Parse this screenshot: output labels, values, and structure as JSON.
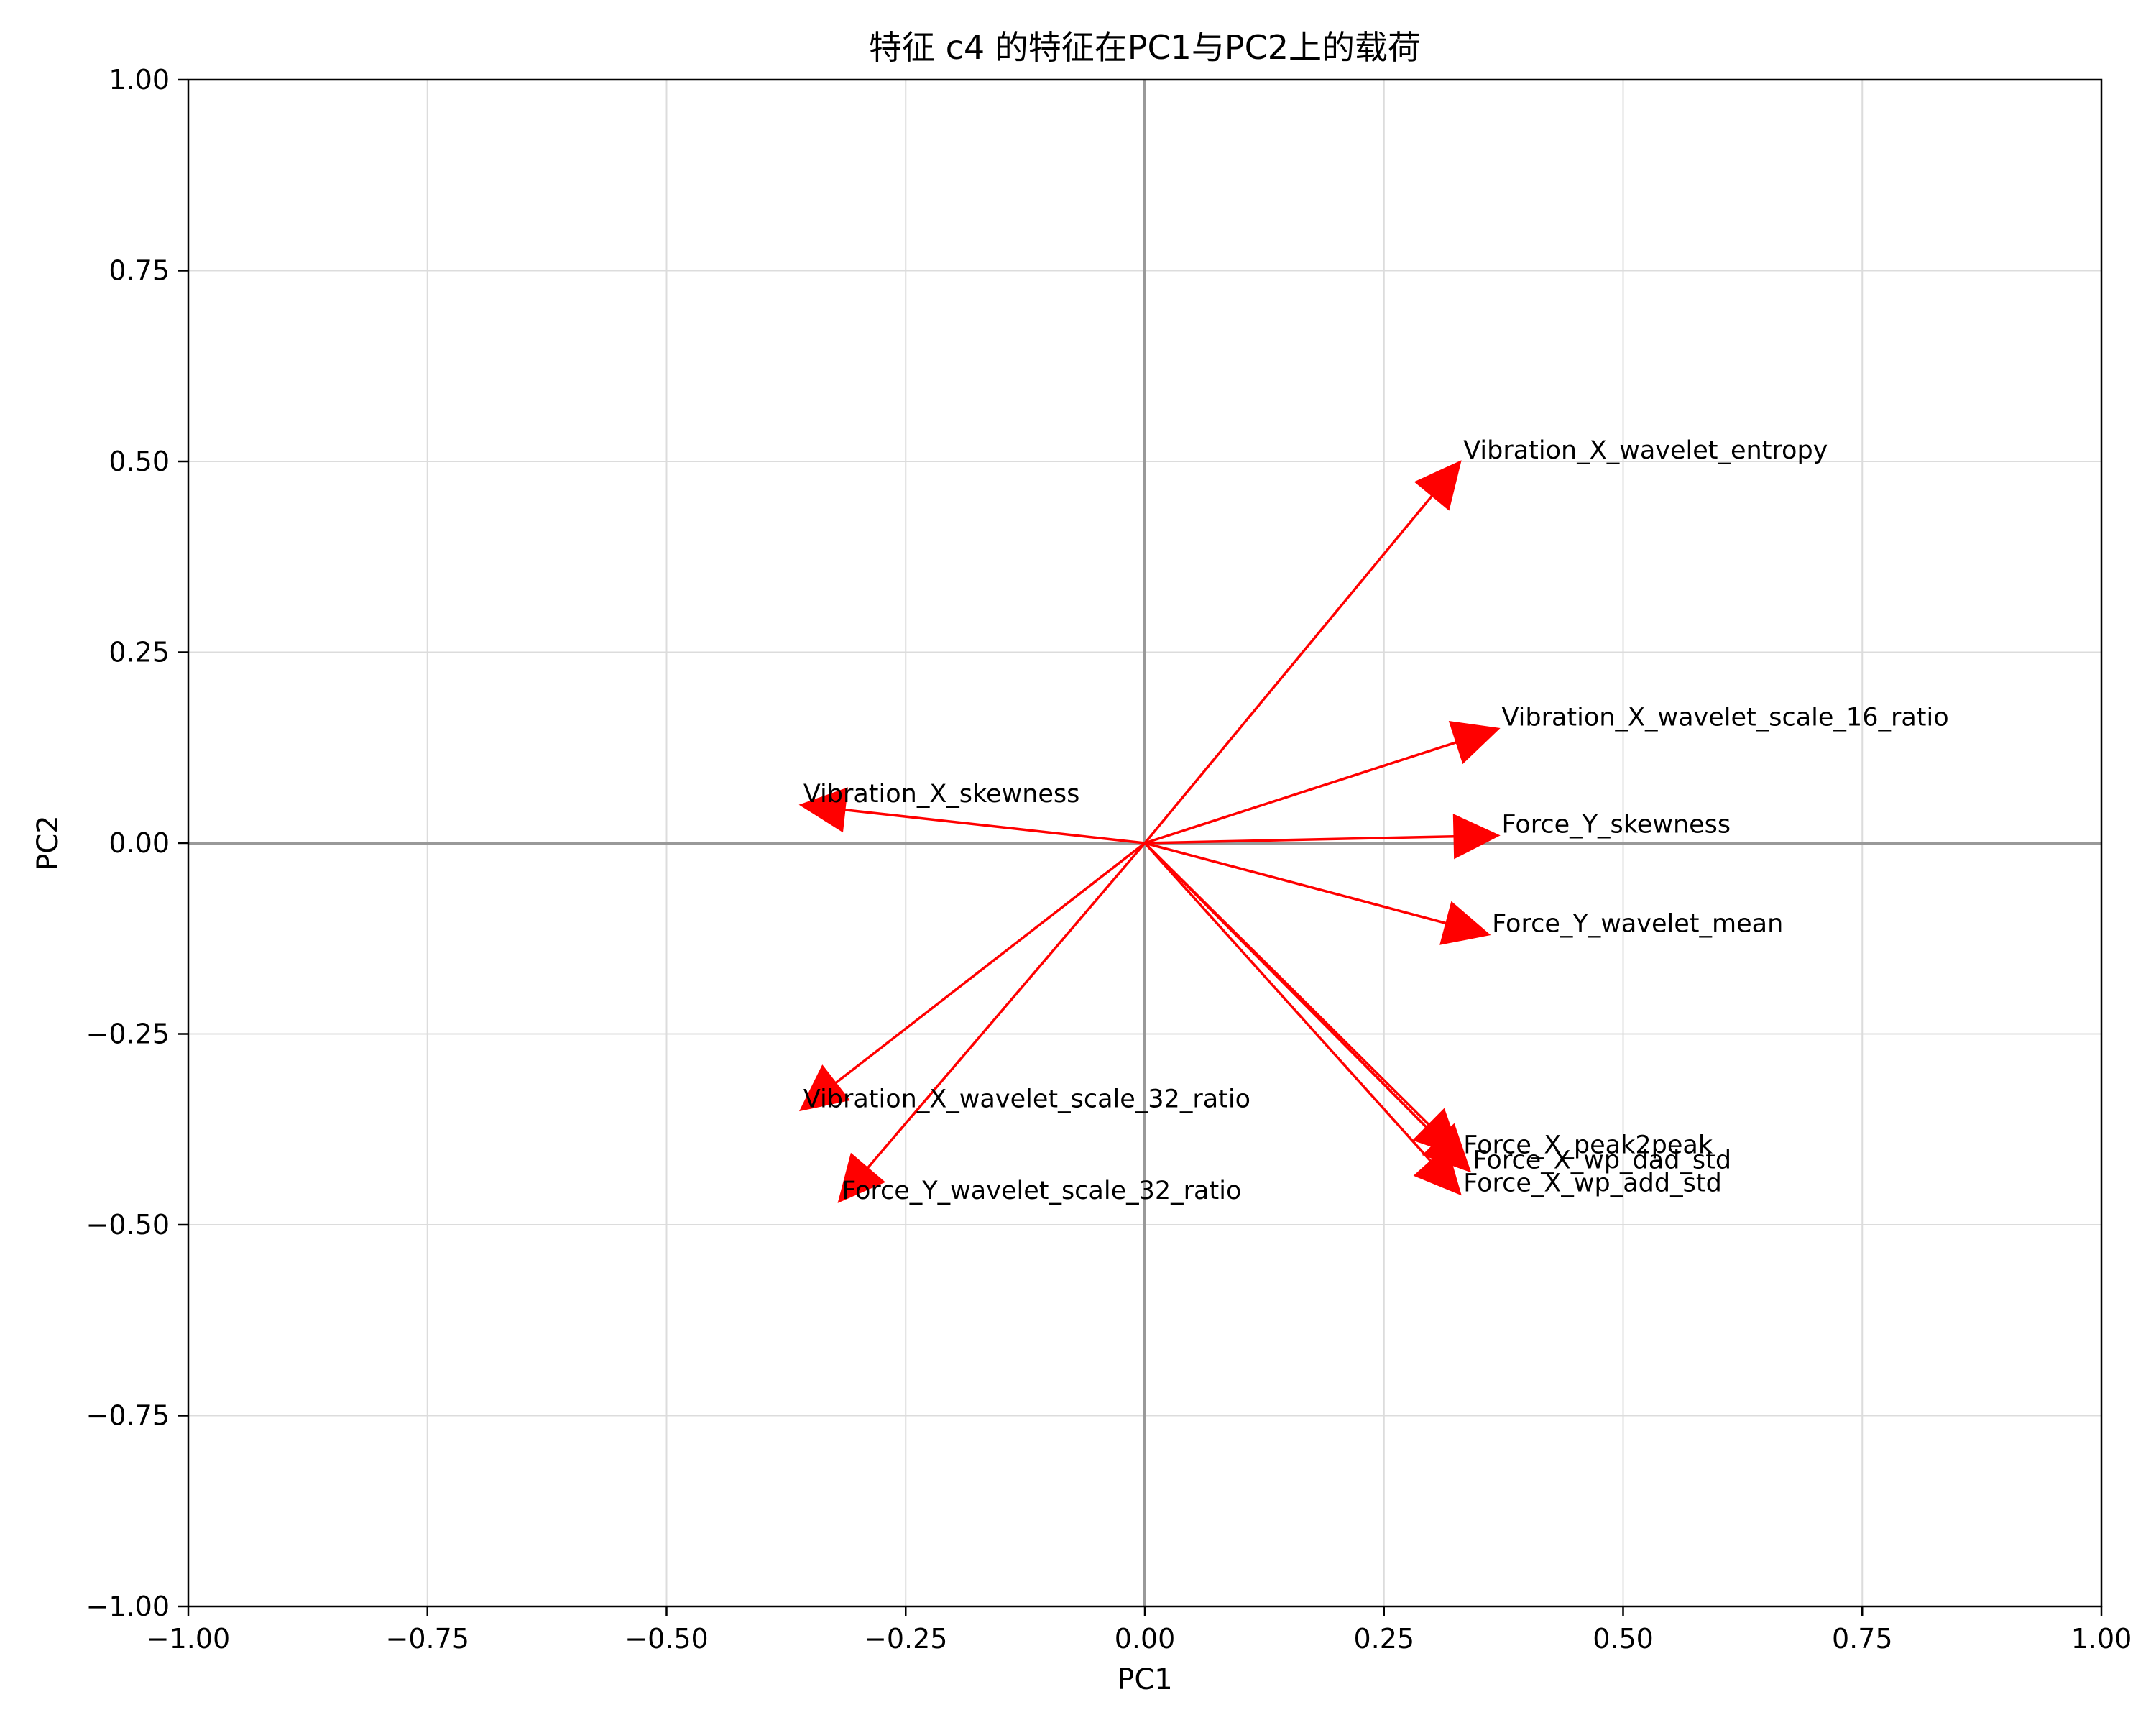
{
  "chart_data": {
    "type": "vector",
    "title": "特征 c4 的特征在PC1与PC2上的载荷",
    "xlabel": "PC1",
    "ylabel": "PC2",
    "xlim": [
      -1.0,
      1.0
    ],
    "ylim": [
      -1.0,
      1.0
    ],
    "xticks": [
      -1.0,
      -0.75,
      -0.5,
      -0.25,
      0.0,
      0.25,
      0.5,
      0.75,
      1.0
    ],
    "yticks": [
      -1.0,
      -0.75,
      -0.5,
      -0.25,
      0.0,
      0.25,
      0.5,
      0.75,
      1.0
    ],
    "xtick_labels": [
      "−1.00",
      "−0.75",
      "−0.50",
      "−0.25",
      "0.00",
      "0.25",
      "0.50",
      "0.75",
      "1.00"
    ],
    "ytick_labels": [
      "−1.00",
      "−0.75",
      "−0.50",
      "−0.25",
      "0.00",
      "0.25",
      "0.50",
      "0.75",
      "1.00"
    ],
    "grid": true,
    "arrow_color": "#ff0000",
    "vectors": [
      {
        "label": "Vibration_X_wavelet_entropy",
        "x": 0.33,
        "y": 0.5
      },
      {
        "label": "Vibration_X_wavelet_scale_16_ratio",
        "x": 0.37,
        "y": 0.15
      },
      {
        "label": "Vibration_X_skewness",
        "x": -0.36,
        "y": 0.05
      },
      {
        "label": "Force_Y_skewness",
        "x": 0.37,
        "y": 0.01
      },
      {
        "label": "Force_Y_wavelet_mean",
        "x": 0.36,
        "y": -0.12
      },
      {
        "label": "Vibration_X_wavelet_scale_32_ratio",
        "x": -0.36,
        "y": -0.35
      },
      {
        "label": "Force_Y_wavelet_scale_32_ratio",
        "x": -0.32,
        "y": -0.47
      },
      {
        "label": "Force_X_peak2peak",
        "x": 0.33,
        "y": -0.41
      },
      {
        "label": "Force_X_wp_dad_std",
        "x": 0.34,
        "y": -0.43
      },
      {
        "label": "Force_X_wp_add_std",
        "x": 0.33,
        "y": -0.46
      }
    ]
  }
}
